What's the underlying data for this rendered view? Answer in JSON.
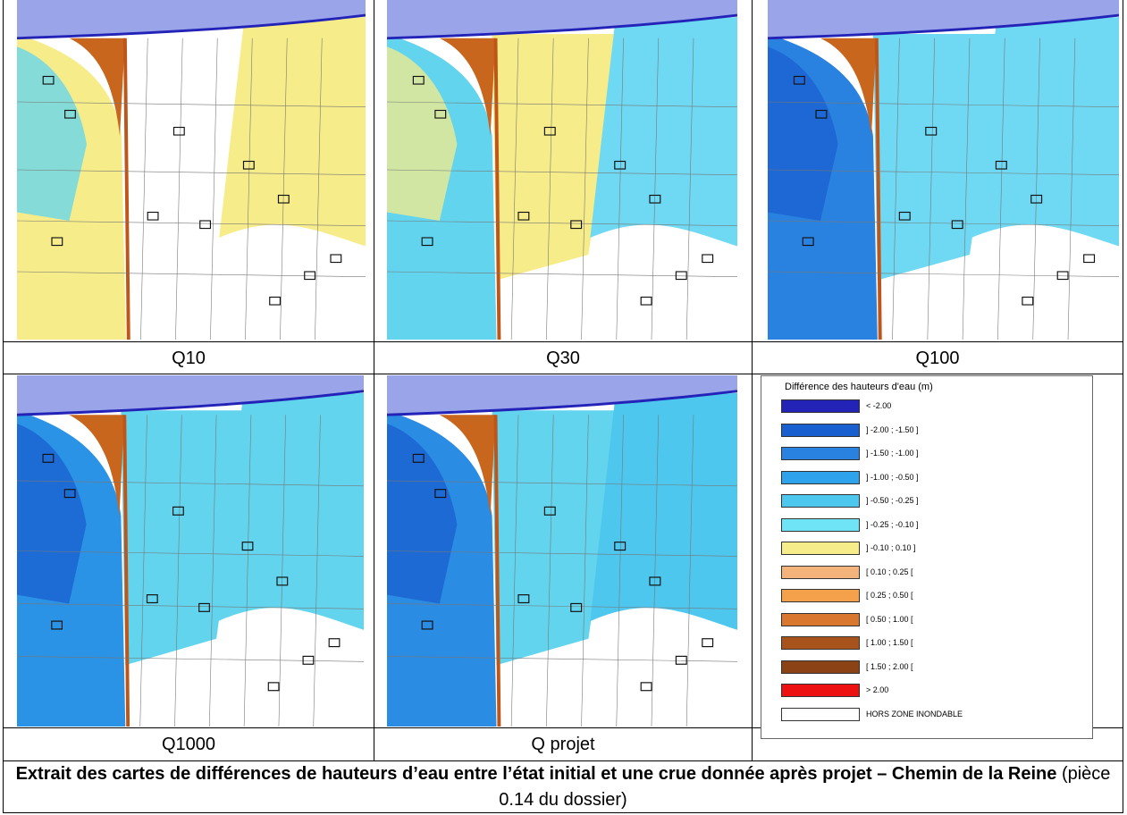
{
  "panels": [
    {
      "label": "Q10",
      "palette": {
        "left": "#f7ec8a",
        "center": "#ffffff",
        "right": "#f7ec8a",
        "accent": "#5ed6f0"
      }
    },
    {
      "label": "Q30",
      "palette": {
        "left": "#62d4ee",
        "center": "#f7ec8a",
        "right": "#6fd8f2",
        "accent": "#f7ec8a"
      }
    },
    {
      "label": "Q100",
      "palette": {
        "left": "#2a82e0",
        "center": "#6fd8f2",
        "right": "#6fd8f2",
        "accent": "#1a5fd0"
      }
    },
    {
      "label": "Q1000",
      "palette": {
        "left": "#2b93e6",
        "center": "#62d4ee",
        "right": "#62d4ee",
        "accent": "#1a5fd0"
      }
    },
    {
      "label": "Q projet",
      "palette": {
        "left": "#2b8ce4",
        "center": "#62d4ee",
        "right": "#4ec7ee",
        "accent": "#1a5fd0"
      }
    }
  ],
  "legend": {
    "title": "Différence des hauteurs d'eau (m)",
    "classes": [
      {
        "label": "< -2.00",
        "color": "#2323b8"
      },
      {
        "label": "] -2.00 ; -1.50 ]",
        "color": "#1a5fd0"
      },
      {
        "label": "] -1.50 ; -1.00 ]",
        "color": "#2a82e0"
      },
      {
        "label": "] -1.00 ; -0.50 ]",
        "color": "#2ea2ea"
      },
      {
        "label": "] -0.50 ; -0.25 ]",
        "color": "#4ec7ee"
      },
      {
        "label": "] -0.25 ; -0.10 ]",
        "color": "#6fe4f6"
      },
      {
        "label": "] -0.10 ; 0.10 ]",
        "color": "#f7ec8a"
      },
      {
        "label": "[ 0.10 ; 0.25 [",
        "color": "#f4b37a"
      },
      {
        "label": "[ 0.25 ; 0.50 [",
        "color": "#f5a04a"
      },
      {
        "label": "[ 0.50 ; 1.00 [",
        "color": "#d9772e"
      },
      {
        "label": "[ 1.00 ; 1.50 [",
        "color": "#a8521c"
      },
      {
        "label": "[ 1.50 ; 2.00 [",
        "color": "#8b4214"
      },
      {
        "label": "> 2.00",
        "color": "#ee1111"
      },
      {
        "label": "HORS ZONE INONDABLE",
        "color": "#ffffff"
      }
    ]
  },
  "caption": {
    "bold": "Extrait des cartes de différences de hauteurs d’eau entre l’état initial et une crue donnée après projet – Chemin de la Reine",
    "normal": " (pièce 0.14 du dossier)"
  }
}
